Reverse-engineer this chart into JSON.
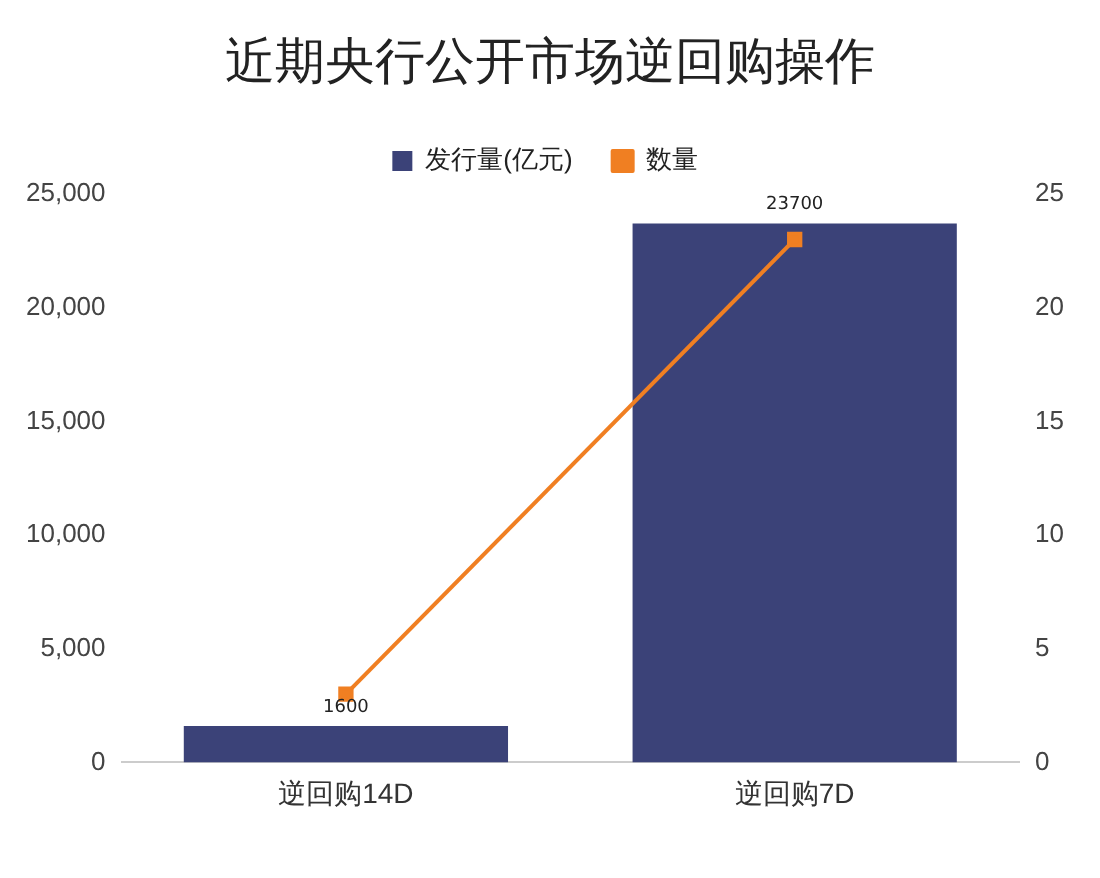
{
  "chart_data": {
    "type": "bar",
    "title": "近期央行公开市场逆回购操作",
    "categories": [
      "逆回购14D",
      "逆回购7D"
    ],
    "series": [
      {
        "name": "发行量(亿元)",
        "color": "#3b4278",
        "values": [
          1600,
          23700
        ],
        "value_labels": [
          "1600",
          "23700"
        ]
      },
      {
        "name": "数量",
        "type": "line",
        "axis": "y2",
        "color": "#f07f22",
        "values": [
          3,
          23
        ],
        "marker": "square"
      }
    ],
    "ylim": [
      0,
      25000
    ],
    "yticks": [
      0,
      {
        "value": 5000,
        "label": "5,000"
      },
      {
        "value": 10000,
        "label": "10,000"
      },
      {
        "value": 15000,
        "label": "15,000"
      },
      {
        "value": 20000,
        "label": "20,000"
      },
      {
        "value": 25000,
        "label": "25,000"
      }
    ],
    "y2lim": [
      0,
      25
    ],
    "y2ticks": [
      0,
      5,
      10,
      15,
      20,
      25
    ],
    "grid": false,
    "legend": "top"
  }
}
